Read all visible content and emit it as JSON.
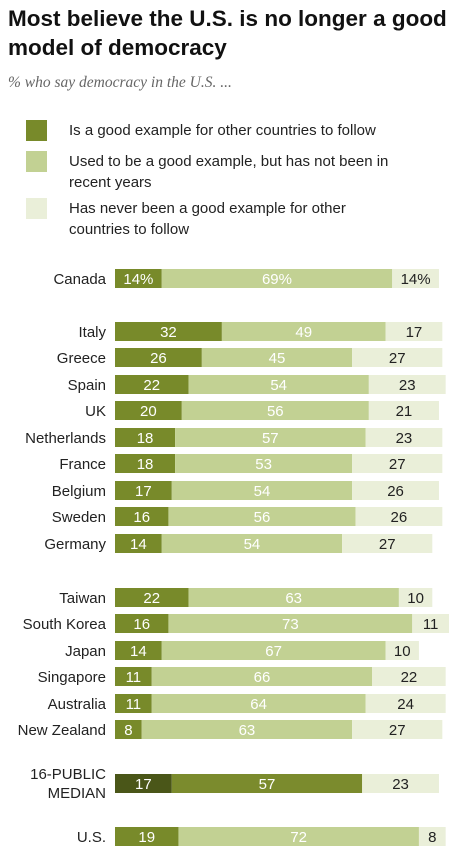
{
  "chart_data": {
    "type": "bar",
    "orientation": "horizontal",
    "stacked": true,
    "title": "Most believe the U.S. is no longer a good model of democracy",
    "subtitle": "% who say democracy in the U.S. ...",
    "series": [
      {
        "name": "Is a good example for other countries to follow",
        "color": "#788a2a"
      },
      {
        "name": "Used to be a good example, but has not been in recent years",
        "color": "#c2d193"
      },
      {
        "name": "Has never been a good example for other countries to follow",
        "color": "#eaefd9"
      }
    ],
    "median_color": "#4a5618",
    "median_mid_color": "#7b8b2d",
    "rows": [
      {
        "label": "Canada",
        "values": [
          14,
          69,
          14
        ],
        "labels": [
          "14%",
          "69%",
          "14%"
        ],
        "group": 0
      },
      {
        "label": "Italy",
        "values": [
          32,
          49,
          17
        ],
        "labels": [
          "32",
          "49",
          "17"
        ],
        "group": 1
      },
      {
        "label": "Greece",
        "values": [
          26,
          45,
          27
        ],
        "labels": [
          "26",
          "45",
          "27"
        ],
        "group": 1
      },
      {
        "label": "Spain",
        "values": [
          22,
          54,
          23
        ],
        "labels": [
          "22",
          "54",
          "23"
        ],
        "group": 1
      },
      {
        "label": "UK",
        "values": [
          20,
          56,
          21
        ],
        "labels": [
          "20",
          "56",
          "21"
        ],
        "group": 1
      },
      {
        "label": "Netherlands",
        "values": [
          18,
          57,
          23
        ],
        "labels": [
          "18",
          "57",
          "23"
        ],
        "group": 1
      },
      {
        "label": "France",
        "values": [
          18,
          53,
          27
        ],
        "labels": [
          "18",
          "53",
          "27"
        ],
        "group": 1
      },
      {
        "label": "Belgium",
        "values": [
          17,
          54,
          26
        ],
        "labels": [
          "17",
          "54",
          "26"
        ],
        "group": 1
      },
      {
        "label": "Sweden",
        "values": [
          16,
          56,
          26
        ],
        "labels": [
          "16",
          "56",
          "26"
        ],
        "group": 1
      },
      {
        "label": "Germany",
        "values": [
          14,
          54,
          27
        ],
        "labels": [
          "14",
          "54",
          "27"
        ],
        "group": 1
      },
      {
        "label": "Taiwan",
        "values": [
          22,
          63,
          10
        ],
        "labels": [
          "22",
          "63",
          "10"
        ],
        "group": 2
      },
      {
        "label": "South Korea",
        "values": [
          16,
          73,
          11
        ],
        "labels": [
          "16",
          "73",
          "11"
        ],
        "group": 2
      },
      {
        "label": "Japan",
        "values": [
          14,
          67,
          10
        ],
        "labels": [
          "14",
          "67",
          "10"
        ],
        "group": 2
      },
      {
        "label": "Singapore",
        "values": [
          11,
          66,
          22
        ],
        "labels": [
          "11",
          "66",
          "22"
        ],
        "group": 2
      },
      {
        "label": "Australia",
        "values": [
          11,
          64,
          24
        ],
        "labels": [
          "11",
          "64",
          "24"
        ],
        "group": 2
      },
      {
        "label": "New Zealand",
        "values": [
          8,
          63,
          27
        ],
        "labels": [
          "8",
          "63",
          "27"
        ],
        "group": 2
      },
      {
        "label": "16-PUBLIC MEDIAN",
        "label_lines": [
          "16-PUBLIC",
          "MEDIAN"
        ],
        "values": [
          17,
          57,
          23
        ],
        "labels": [
          "17",
          "57",
          "23"
        ],
        "group": 3,
        "median": true
      },
      {
        "label": "U.S.",
        "values": [
          19,
          72,
          8
        ],
        "labels": [
          "19",
          "72",
          "8"
        ],
        "group": 4
      }
    ]
  }
}
